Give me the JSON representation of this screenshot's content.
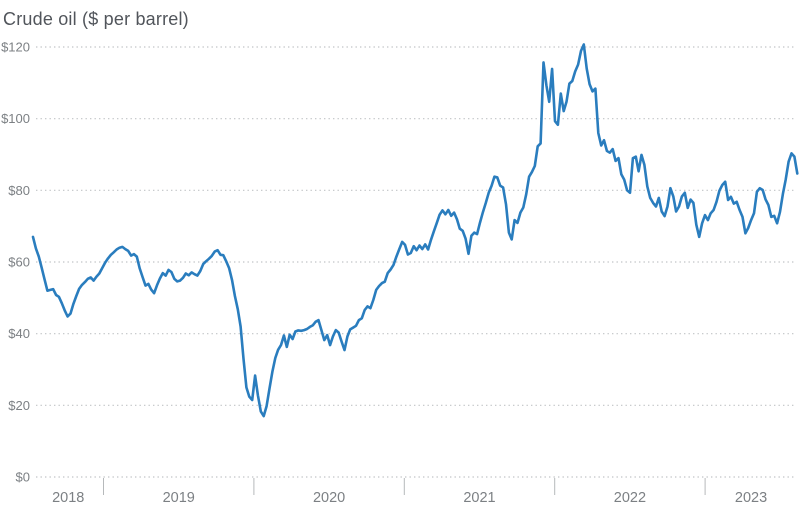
{
  "title": "Crude oil ($ per barrel)",
  "chart_data": {
    "type": "line",
    "title": "Crude oil ($ per barrel)",
    "series_name": "Crude oil price",
    "unit": "$ per barrel",
    "currency_prefix": "$",
    "line_color": "#2a7dbe",
    "grid": "dotted-horizontal",
    "legend": "none",
    "ylim": [
      0,
      120
    ],
    "y_ticks": [
      0,
      20,
      40,
      60,
      80,
      100,
      120
    ],
    "x_labels": [
      "2018",
      "2019",
      "2020",
      "2021",
      "2022",
      "2023"
    ],
    "x_tick_years": [
      2019,
      2020,
      2021,
      2022,
      2023
    ],
    "x_range_years": [
      2018.53,
      2023.61
    ],
    "x_start_year_decimal": 2018.5312,
    "x_step_years": 0.019176,
    "values": [
      67.0,
      63.8,
      61.5,
      58.5,
      55.2,
      52.0,
      52.2,
      52.4,
      50.8,
      50.3,
      48.5,
      46.5,
      44.8,
      45.6,
      48.3,
      50.5,
      52.5,
      53.6,
      54.4,
      55.3,
      55.7,
      54.8,
      55.9,
      56.8,
      58.3,
      59.8,
      61.0,
      62.0,
      62.7,
      63.5,
      64.0,
      64.2,
      63.6,
      63.1,
      61.8,
      62.2,
      61.5,
      58.2,
      55.8,
      53.4,
      53.9,
      52.3,
      51.3,
      53.5,
      55.4,
      56.9,
      56.2,
      57.8,
      57.2,
      55.3,
      54.6,
      54.8,
      55.6,
      56.8,
      56.3,
      57.1,
      56.6,
      56.2,
      57.5,
      59.4,
      60.2,
      60.9,
      61.7,
      62.9,
      63.3,
      62.0,
      61.9,
      60.2,
      58.3,
      55.0,
      50.5,
      46.8,
      42.0,
      33.0,
      25.0,
      22.4,
      21.5,
      28.3,
      22.8,
      18.3,
      17.0,
      19.8,
      24.7,
      29.4,
      33.2,
      35.5,
      36.8,
      39.5,
      36.3,
      39.7,
      38.5,
      40.6,
      40.9,
      40.8,
      41.0,
      41.3,
      41.9,
      42.3,
      43.3,
      43.8,
      41.0,
      38.2,
      39.6,
      36.8,
      39.2,
      41.0,
      40.3,
      37.8,
      35.4,
      39.2,
      41.2,
      41.7,
      42.2,
      43.8,
      44.3,
      46.6,
      47.6,
      47.1,
      49.4,
      52.2,
      53.3,
      54.1,
      54.5,
      56.9,
      57.9,
      59.2,
      61.5,
      63.6,
      65.6,
      64.8,
      62.1,
      62.5,
      64.4,
      63.3,
      64.6,
      63.6,
      64.9,
      63.5,
      66.2,
      68.6,
      70.9,
      73.2,
      74.4,
      73.3,
      74.5,
      72.9,
      73.8,
      71.9,
      69.3,
      68.7,
      66.5,
      62.3,
      67.3,
      68.2,
      67.8,
      71.0,
      73.9,
      76.5,
      79.3,
      81.3,
      83.8,
      83.6,
      81.3,
      80.8,
      76.1,
      68.2,
      66.3,
      71.7,
      70.9,
      73.8,
      75.2,
      78.9,
      83.8,
      85.1,
      86.8,
      92.3,
      93.1,
      115.7,
      109.3,
      104.7,
      113.9,
      99.3,
      98.3,
      107.0,
      102.1,
      104.7,
      109.8,
      110.5,
      113.2,
      115.1,
      118.9,
      120.7,
      114.0,
      109.6,
      107.6,
      108.4,
      96.0,
      92.5,
      94.0,
      91.0,
      90.5,
      91.5,
      88.2,
      89.0,
      84.5,
      83.0,
      80.0,
      79.3,
      89.0,
      89.4,
      85.3,
      89.9,
      87.1,
      81.1,
      77.9,
      76.5,
      75.5,
      77.9,
      74.1,
      72.8,
      75.5,
      80.6,
      78.3,
      74.1,
      75.5,
      78.3,
      79.3,
      75.1,
      77.4,
      76.5,
      70.4,
      67.0,
      70.8,
      73.1,
      71.7,
      73.6,
      74.5,
      76.8,
      79.9,
      81.5,
      82.4,
      77.3,
      78.2,
      76.3,
      76.8,
      74.5,
      72.6,
      68.0,
      69.5,
      71.7,
      73.6,
      79.6,
      80.6,
      80.1,
      77.5,
      75.9,
      72.6,
      72.9,
      70.8,
      74.0,
      79.0,
      83.0,
      88.0,
      90.3,
      89.4,
      84.7
    ]
  },
  "axis_style": {
    "label_color": "#7c8084",
    "grid_color": "#c1c4c6",
    "tick_color": "#b6b9bb",
    "title_color": "#51555b"
  }
}
